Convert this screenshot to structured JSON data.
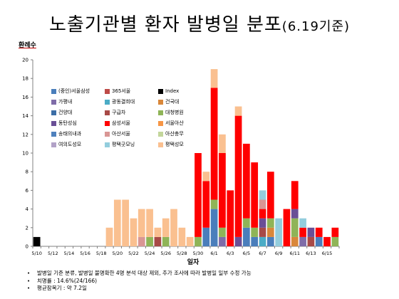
{
  "title": {
    "main": "노출기관별 환자 발병일 분포",
    "suffix": "(6.19기준)"
  },
  "chart_data": {
    "type": "bar",
    "stacked": true,
    "title": "",
    "xlabel": "일자",
    "ylabel": "환례수",
    "ylim": [
      0,
      20
    ],
    "yticks": [
      0,
      2,
      4,
      6,
      8,
      10,
      12,
      14,
      16,
      18,
      20
    ],
    "xtick_labels": [
      "5/10",
      "5/12",
      "5/14",
      "5/16",
      "5/18",
      "5/20",
      "5/22",
      "5/24",
      "5/26",
      "5/28",
      "5/30",
      "6/1",
      "6/3",
      "6/5",
      "6/7",
      "6/9",
      "6/11",
      "6/13",
      "6/15"
    ],
    "grid": false,
    "legend_position": "upper-left",
    "categories": [
      "5/10",
      "5/11",
      "5/12",
      "5/13",
      "5/14",
      "5/15",
      "5/16",
      "5/17",
      "5/18",
      "5/19",
      "5/20",
      "5/21",
      "5/22",
      "5/23",
      "5/24",
      "5/25",
      "5/26",
      "5/27",
      "5/28",
      "5/29",
      "5/30",
      "5/31",
      "6/1",
      "6/2",
      "6/3",
      "6/4",
      "6/5",
      "6/6",
      "6/7",
      "6/8",
      "6/9",
      "6/10",
      "6/11",
      "6/12",
      "6/13",
      "6/14",
      "6/15",
      "6/16"
    ],
    "series": [
      {
        "name": "(중인)서울삼성",
        "color": "#4a7ebb",
        "values": [
          0,
          0,
          0,
          0,
          0,
          0,
          0,
          0,
          0,
          0,
          0,
          0,
          0,
          0,
          0,
          0,
          0,
          0,
          0,
          0,
          0,
          2,
          4,
          0,
          0,
          0,
          2,
          1,
          0,
          1,
          0,
          0,
          0,
          0,
          0,
          1,
          0,
          0
        ]
      },
      {
        "name": "365서울",
        "color": "#be4b48",
        "values": [
          0,
          0,
          0,
          0,
          0,
          0,
          0,
          0,
          0,
          0,
          0,
          0,
          0,
          0,
          0,
          0,
          0,
          0,
          0,
          0,
          0,
          0,
          0,
          0,
          0,
          0,
          0,
          0,
          0,
          0,
          0,
          0,
          0,
          0,
          0,
          0,
          0,
          0
        ]
      },
      {
        "name": "Index",
        "color": "#000000",
        "values": [
          1,
          0,
          0,
          0,
          0,
          0,
          0,
          0,
          0,
          0,
          0,
          0,
          0,
          0,
          0,
          0,
          0,
          0,
          0,
          0,
          0,
          0,
          0,
          0,
          0,
          0,
          0,
          0,
          0,
          0,
          0,
          0,
          0,
          0,
          0,
          0,
          0,
          0
        ]
      },
      {
        "name": "가평내",
        "color": "#7f6ca8",
        "values": [
          0,
          0,
          0,
          0,
          0,
          0,
          0,
          0,
          0,
          0,
          0,
          0,
          0,
          0,
          0,
          0,
          0,
          0,
          0,
          0,
          0,
          0,
          0,
          1,
          0,
          0,
          0,
          0,
          0,
          0,
          0,
          0,
          0,
          1,
          0,
          0,
          0,
          0
        ]
      },
      {
        "name": "광동결희대",
        "color": "#4bacc6",
        "values": [
          0,
          0,
          0,
          0,
          0,
          0,
          0,
          0,
          0,
          0,
          0,
          0,
          0,
          0,
          0,
          0,
          0,
          0,
          0,
          0,
          0,
          0,
          0,
          0,
          0,
          0,
          0,
          0,
          1,
          0,
          0,
          0,
          0,
          0,
          0,
          0,
          0,
          0
        ]
      },
      {
        "name": "건국대",
        "color": "#d9873a",
        "values": [
          0,
          0,
          0,
          0,
          0,
          0,
          0,
          0,
          0,
          0,
          0,
          0,
          0,
          0,
          0,
          0,
          0,
          0,
          0,
          0,
          0,
          0,
          0,
          0,
          0,
          0,
          0,
          0,
          0,
          1,
          0,
          0,
          1,
          0,
          0,
          0,
          0,
          0
        ]
      },
      {
        "name": "건양대",
        "color": "#3c6ea6",
        "values": [
          0,
          0,
          0,
          0,
          0,
          0,
          0,
          0,
          0,
          0,
          0,
          0,
          0,
          0,
          0,
          0,
          0,
          0,
          0,
          0,
          0,
          0,
          0,
          0,
          0,
          0,
          0,
          0,
          0,
          0,
          0,
          0,
          0,
          0,
          0,
          0,
          0,
          0
        ]
      },
      {
        "name": "구급차",
        "color": "#a84a47",
        "values": [
          0,
          0,
          0,
          0,
          0,
          0,
          0,
          0,
          0,
          0,
          0,
          0,
          0,
          0,
          0,
          1,
          0,
          0,
          0,
          0,
          0,
          0,
          0,
          0,
          0,
          0,
          0,
          0,
          1,
          0,
          0,
          0,
          0,
          0,
          1,
          0,
          0,
          0
        ]
      },
      {
        "name": "대청병원",
        "color": "#8fb457",
        "values": [
          0,
          0,
          0,
          0,
          0,
          0,
          0,
          0,
          0,
          0,
          0,
          0,
          0,
          0,
          1,
          0,
          1,
          0,
          0,
          0,
          1,
          0,
          1,
          1,
          0,
          0,
          1,
          1,
          0,
          1,
          0,
          0,
          2,
          0,
          0,
          0,
          0,
          1
        ]
      },
      {
        "name": "동탄성심",
        "color": "#6a4f96",
        "values": [
          0,
          0,
          0,
          0,
          0,
          0,
          0,
          0,
          0,
          0,
          0,
          0,
          0,
          0,
          0,
          0,
          0,
          0,
          0,
          0,
          0,
          0,
          0,
          0,
          0,
          1,
          0,
          0,
          1,
          0,
          0,
          0,
          1,
          0,
          1,
          0,
          0,
          0
        ]
      },
      {
        "name": "삼성서울",
        "color": "#ff0000",
        "values": [
          0,
          0,
          0,
          0,
          0,
          0,
          0,
          0,
          0,
          0,
          0,
          0,
          0,
          0,
          0,
          0,
          0,
          0,
          0,
          0,
          9,
          5,
          12,
          8,
          6,
          13,
          8,
          7,
          1,
          5,
          0,
          4,
          3,
          1,
          0,
          1,
          1,
          1
        ]
      },
      {
        "name": "서울아산",
        "color": "#f79646",
        "values": [
          0,
          0,
          0,
          0,
          0,
          0,
          0,
          0,
          0,
          0,
          0,
          0,
          0,
          0,
          0,
          0,
          0,
          0,
          0,
          0,
          0,
          0,
          0,
          0,
          0,
          0,
          0,
          0,
          0,
          0,
          0,
          0,
          0,
          0,
          0,
          0,
          0,
          0
        ]
      },
      {
        "name": "송태의내과",
        "color": "#4f81bd",
        "values": [
          0,
          0,
          0,
          0,
          0,
          0,
          0,
          0,
          0,
          0,
          0,
          0,
          0,
          0,
          0,
          0,
          0,
          0,
          0,
          0,
          0,
          0,
          0,
          0,
          0,
          0,
          0,
          0,
          0,
          0,
          0,
          0,
          0,
          0,
          0,
          0,
          0,
          0
        ]
      },
      {
        "name": "아산서울",
        "color": "#d99694",
        "values": [
          0,
          0,
          0,
          0,
          0,
          0,
          0,
          0,
          0,
          0,
          0,
          0,
          0,
          1,
          0,
          0,
          0,
          0,
          0,
          0,
          0,
          0,
          0,
          0,
          0,
          0,
          0,
          0,
          1,
          0,
          0,
          0,
          0,
          0,
          0,
          0,
          0,
          0
        ]
      },
      {
        "name": "아산충무",
        "color": "#c3d69b",
        "values": [
          0,
          0,
          0,
          0,
          0,
          0,
          0,
          0,
          0,
          0,
          0,
          0,
          0,
          0,
          0,
          0,
          0,
          0,
          0,
          0,
          0,
          0,
          0,
          0,
          0,
          0,
          0,
          0,
          0,
          0,
          0,
          0,
          0,
          0,
          0,
          0,
          0,
          0
        ]
      },
      {
        "name": "여의도성모",
        "color": "#b2a2c7",
        "values": [
          0,
          0,
          0,
          0,
          0,
          0,
          0,
          0,
          0,
          0,
          0,
          0,
          0,
          0,
          0,
          0,
          0,
          0,
          0,
          0,
          0,
          0,
          0,
          0,
          0,
          0,
          0,
          0,
          0,
          0,
          0,
          0,
          0,
          0,
          0,
          0,
          0,
          0
        ]
      },
      {
        "name": "평택굿모닝",
        "color": "#93cddd",
        "values": [
          0,
          0,
          0,
          0,
          0,
          0,
          0,
          0,
          0,
          0,
          0,
          0,
          0,
          0,
          0,
          0,
          0,
          0,
          0,
          0,
          0,
          0,
          0,
          0,
          0,
          0,
          0,
          0,
          1,
          0,
          3,
          0,
          0,
          1,
          0,
          0,
          0,
          0
        ]
      },
      {
        "name": "평택성모",
        "color": "#fac090",
        "values": [
          0,
          0,
          0,
          0,
          0,
          0,
          0,
          0,
          0,
          2,
          5,
          5,
          3,
          3,
          3,
          1,
          2,
          4,
          2,
          1,
          0,
          1,
          2,
          2,
          0,
          1,
          0,
          0,
          0,
          0,
          0,
          0,
          0,
          0,
          0,
          0,
          0,
          0
        ]
      }
    ]
  },
  "notes": [
    "발병일 기준 분류, 발병일 불명확한 4명 분석 대상 제외, 추가 조사에 따라 발병일 일부 수정 가능",
    "치명률 : 14.6%(24/166)",
    "평균잠복기 : 약 7.2일"
  ]
}
